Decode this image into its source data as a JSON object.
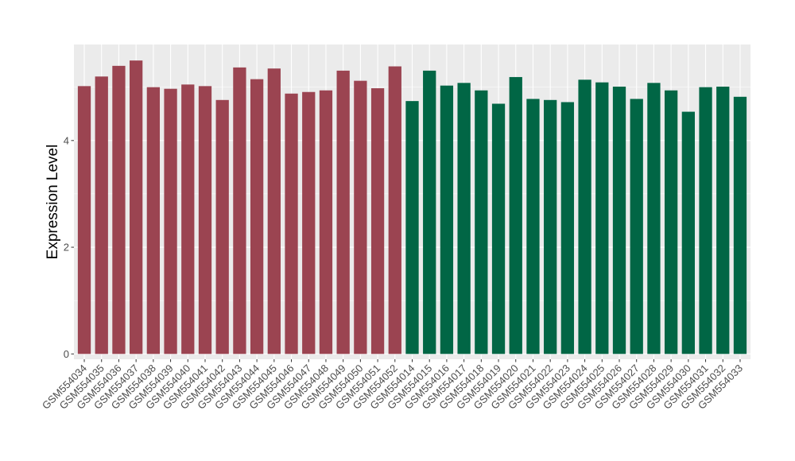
{
  "chart_data": {
    "type": "bar",
    "title": "",
    "xlabel": "",
    "ylabel": "Expression Level",
    "ylim": [
      -0.1,
      5.8
    ],
    "yticks": [
      0,
      2,
      4
    ],
    "grid": true,
    "legend": "none",
    "background_color": "#ebebeb",
    "grid_color": "#ffffff",
    "categories": [
      "GSM554034",
      "GSM554035",
      "GSM554036",
      "GSM554037",
      "GSM554038",
      "GSM554039",
      "GSM554040",
      "GSM554041",
      "GSM554042",
      "GSM554043",
      "GSM554044",
      "GSM554045",
      "GSM554046",
      "GSM554047",
      "GSM554048",
      "GSM554049",
      "GSM554050",
      "GSM554051",
      "GSM554052",
      "GSM554014",
      "GSM554015",
      "GSM554016",
      "GSM554017",
      "GSM554018",
      "GSM554019",
      "GSM554020",
      "GSM554021",
      "GSM554022",
      "GSM554023",
      "GSM554024",
      "GSM554025",
      "GSM554026",
      "GSM554027",
      "GSM554028",
      "GSM554029",
      "GSM554030",
      "GSM554031",
      "GSM554032",
      "GSM554033"
    ],
    "values": [
      5.02,
      5.2,
      5.4,
      5.5,
      5.0,
      4.97,
      5.05,
      5.02,
      4.76,
      5.37,
      5.15,
      5.35,
      4.88,
      4.91,
      4.94,
      5.31,
      5.12,
      4.98,
      5.39,
      4.74,
      5.31,
      5.03,
      5.08,
      4.94,
      4.69,
      5.19,
      4.78,
      4.76,
      4.72,
      5.14,
      5.09,
      5.01,
      4.78,
      5.08,
      4.94,
      4.54,
      5.0,
      5.01,
      4.82
    ],
    "groups": [
      {
        "color": "#9b4451",
        "count": 19
      },
      {
        "color": "#016645",
        "count": 20
      }
    ]
  }
}
